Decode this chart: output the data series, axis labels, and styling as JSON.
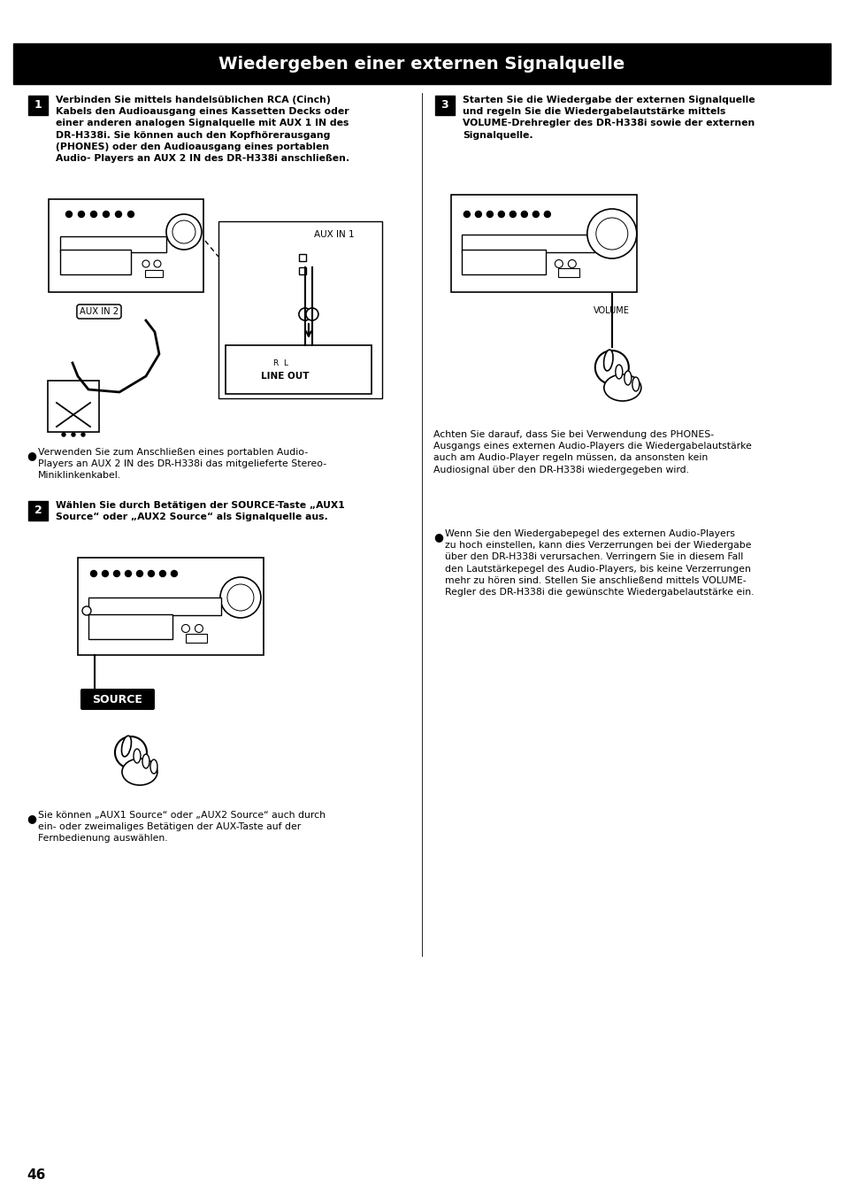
{
  "title": "Wiedergeben einer externen Signalquelle",
  "title_bg": "#000000",
  "title_color": "#ffffff",
  "title_fontsize": 14,
  "page_bg": "#ffffff",
  "page_number": "46",
  "section1_bold_text": "Verbinden Sie mittels handelsüblichen RCA (Cinch)\nKabels den Audioausgang eines Kassetten Decks oder\neiner anderen analogen Signalquelle mit AUX 1 IN des\nDR-H338i. Sie können auch den Kopfhörerausgang\n(PHONES) oder den Audioausgang eines portablen\nAudio- Players an AUX 2 IN des DR-H338i anschließen.",
  "section1_bullet": "Verwenden Sie zum Anschließen eines portablen Audio-\nPlayers an AUX 2 IN des DR-H338i das mitgelieferte Stereo-\nMiniklinkenkabel.",
  "section2_bold_text": "Wählen Sie durch Betätigen der SOURCE-Taste „AUX1\nSource“ oder „AUX2 Source“ als Signalquelle aus.",
  "section2_bullet": "Sie können „AUX1 Source“ oder „AUX2 Source“ auch durch\nein- oder zweimaliges Betätigen der AUX-Taste auf der\nFernbedienung auswählen.",
  "section3_bold_text": "Starten Sie die Wiedergabe der externen Signalquelle\nund regeln Sie die Wiedergabelautstärke mittels\nVOLUME-Drehregler des DR-H338i sowie der externen\nSignalquelle.",
  "section3_note1": "Achten Sie darauf, dass Sie bei Verwendung des PHONES-\nAusgangs eines externen Audio-Players die Wiedergabelautstärke\nauch am Audio-Player regeln müssen, da ansonsten kein\nAudiosignal über den DR-H338i wiedergegeben wird.",
  "section3_bullet": "Wenn Sie den Wiedergabepegel des externen Audio-Players\nzu hoch einstellen, kann dies Verzerrungen bei der Wiedergabe\nüber den DR-H338i verursachen. Verringern Sie in diesem Fall\nden Lautstärkepegel des Audio-Players, bis keine Verzerrungen\nmehr zu hören sind. Stellen Sie anschließend mittels VOLUME-\nRegler des DR-H338i die gewünschte Wiedergabelautstärke ein."
}
